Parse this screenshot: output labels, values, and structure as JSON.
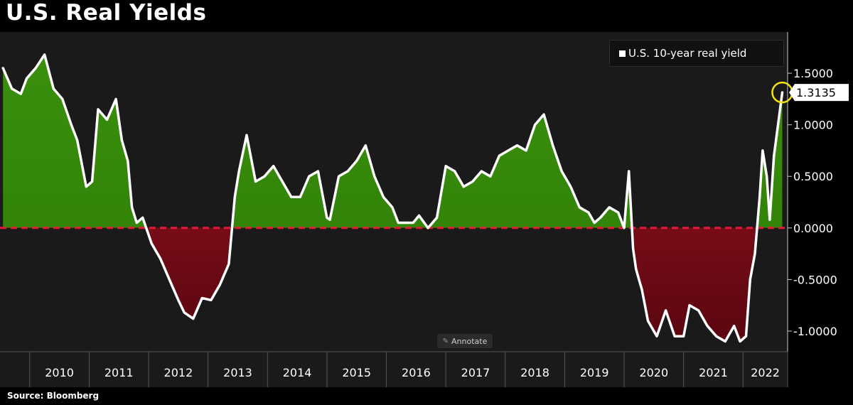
{
  "title": "U.S. Real Yields",
  "source": "Source: Bloomberg",
  "annotate_label": "Annotate",
  "colors": {
    "background": "#000000",
    "plot_background": "#1a1a1a",
    "positive_fill": "#2e7d07",
    "negative_fill": "#8a0e1c",
    "line": "#ffffff",
    "zero_line": "#e8173a",
    "highlight_circle": "#f5e30a"
  },
  "chart_data": {
    "type": "area",
    "title": "U.S. Real Yields",
    "series": [
      {
        "name": "U.S. 10-year real yield",
        "x": [
          2009.55,
          2009.7,
          2009.85,
          2009.95,
          2010.1,
          2010.25,
          2010.4,
          2010.55,
          2010.7,
          2010.8,
          2010.95,
          2011.05,
          2011.15,
          2011.3,
          2011.45,
          2011.55,
          2011.65,
          2011.72,
          2011.8,
          2011.9,
          2012.05,
          2012.2,
          2012.35,
          2012.5,
          2012.6,
          2012.75,
          2012.9,
          2013.05,
          2013.2,
          2013.35,
          2013.45,
          2013.52,
          2013.65,
          2013.8,
          2013.95,
          2014.1,
          2014.25,
          2014.4,
          2014.55,
          2014.7,
          2014.85,
          2015.0,
          2015.05,
          2015.2,
          2015.35,
          2015.5,
          2015.65,
          2015.8,
          2015.95,
          2016.1,
          2016.2,
          2016.35,
          2016.45,
          2016.55,
          2016.7,
          2016.85,
          2017.0,
          2017.15,
          2017.3,
          2017.45,
          2017.6,
          2017.75,
          2017.9,
          2018.05,
          2018.2,
          2018.35,
          2018.5,
          2018.65,
          2018.8,
          2018.95,
          2019.1,
          2019.25,
          2019.4,
          2019.5,
          2019.6,
          2019.75,
          2019.9,
          2020.0,
          2020.08,
          2020.15,
          2020.2,
          2020.25,
          2020.3,
          2020.4,
          2020.55,
          2020.7,
          2020.85,
          2021.0,
          2021.1,
          2021.25,
          2021.4,
          2021.55,
          2021.7,
          2021.85,
          2021.95,
          2022.05,
          2022.12,
          2022.2,
          2022.28,
          2022.33,
          2022.4,
          2022.45,
          2022.52,
          2022.6,
          2022.66
        ],
        "values": [
          1.55,
          1.35,
          1.3,
          1.45,
          1.55,
          1.68,
          1.35,
          1.25,
          1.0,
          0.85,
          0.4,
          0.45,
          1.15,
          1.05,
          1.25,
          0.85,
          0.65,
          0.2,
          0.05,
          0.1,
          -0.15,
          -0.3,
          -0.5,
          -0.7,
          -0.82,
          -0.88,
          -0.68,
          -0.7,
          -0.55,
          -0.35,
          0.3,
          0.55,
          0.9,
          0.45,
          0.5,
          0.6,
          0.45,
          0.3,
          0.3,
          0.5,
          0.55,
          0.1,
          0.08,
          0.5,
          0.55,
          0.65,
          0.8,
          0.5,
          0.3,
          0.2,
          0.05,
          0.05,
          0.05,
          0.12,
          0.0,
          0.1,
          0.6,
          0.55,
          0.4,
          0.45,
          0.55,
          0.5,
          0.7,
          0.75,
          0.8,
          0.75,
          1.0,
          1.1,
          0.8,
          0.55,
          0.4,
          0.2,
          0.15,
          0.05,
          0.1,
          0.2,
          0.15,
          0.0,
          0.55,
          -0.2,
          -0.4,
          -0.5,
          -0.6,
          -0.9,
          -1.05,
          -0.8,
          -1.05,
          -1.05,
          -0.75,
          -0.8,
          -0.95,
          -1.05,
          -1.1,
          -0.95,
          -1.1,
          -1.05,
          -0.5,
          -0.25,
          0.3,
          0.75,
          0.5,
          0.08,
          0.7,
          1.05,
          1.3135
        ]
      }
    ],
    "last_value_label": "1.3135",
    "xlim": [
      2009.5,
      2022.75
    ],
    "ylim": [
      -1.2,
      1.9
    ],
    "y_ticks": [
      1.5,
      1.0,
      0.5,
      0.0,
      -0.5,
      -1.0
    ],
    "y_tick_labels": [
      "1.5000",
      "1.0000",
      "0.5000",
      "0.0000",
      "-0.5000",
      "-1.0000"
    ],
    "x_tick_labels": [
      "2010",
      "2011",
      "2012",
      "2013",
      "2014",
      "2015",
      "2016",
      "2017",
      "2018",
      "2019",
      "2020",
      "2021",
      "2022"
    ],
    "x_year_boundaries": [
      2010,
      2011,
      2012,
      2013,
      2014,
      2015,
      2016,
      2017,
      2018,
      2019,
      2020,
      2021,
      2022
    ],
    "legend": "top-right",
    "reference_line": 0.0,
    "grid": false
  }
}
